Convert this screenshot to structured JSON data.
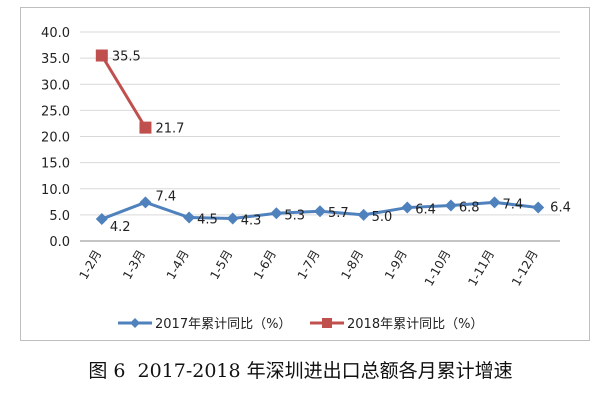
{
  "chart_data": {
    "type": "line",
    "categories": [
      "1-2月",
      "1-3月",
      "1-4月",
      "1-5月",
      "1-6月",
      "1-7月",
      "1-8月",
      "1-9月",
      "1-10月",
      "1-11月",
      "1-12月"
    ],
    "series": [
      {
        "name": "2017年累计同比（%）",
        "color": "#4F81BD",
        "marker": "diamond",
        "values": [
          4.2,
          7.4,
          4.5,
          4.3,
          5.3,
          5.7,
          5.0,
          6.4,
          6.8,
          7.4,
          6.4
        ],
        "labels": [
          "4.2",
          "7.4",
          "4.5",
          "4.3",
          "5.3",
          "5.7",
          "5.0",
          "6.4",
          "6.8",
          "7.4",
          "6.4"
        ]
      },
      {
        "name": "2018年累计同比（%）",
        "color": "#C0504D",
        "marker": "square",
        "values": [
          35.5,
          21.7,
          null,
          null,
          null,
          null,
          null,
          null,
          null,
          null,
          null
        ],
        "labels": [
          "35.5",
          "21.7"
        ]
      }
    ],
    "yticks": [
      "0.0",
      "5.0",
      "10.0",
      "15.0",
      "20.0",
      "25.0",
      "30.0",
      "35.0",
      "40.0"
    ],
    "ylim": [
      0,
      40
    ],
    "grid": true,
    "legend": "bottom"
  },
  "caption": {
    "figure": "图 6",
    "title": "2017-2018 年深圳进出口总额各月累计增速"
  }
}
